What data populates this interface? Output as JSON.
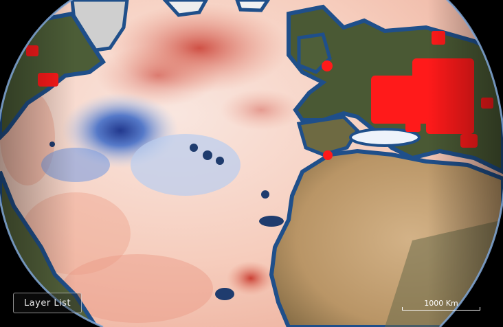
{
  "controls": {
    "layer_list_label": "Layer List"
  },
  "scale": {
    "label": "1000 Km"
  },
  "colors": {
    "ocean_warm_light": "#f7d8cc",
    "ocean_warm": "#ec9a84",
    "ocean_hot": "#c8382d",
    "ocean_cool": "#9fbbe8",
    "ocean_cold": "#1a3a9a",
    "coast_band": "#1f4f8a",
    "land": "#4a5a36",
    "desert": "#c8a77a",
    "ice": "#e8e8e8",
    "markers": "#ff1a1a",
    "atmosphere": "#7fa6d6"
  },
  "icons": {
    "markers": "red-box-marker-icon"
  }
}
